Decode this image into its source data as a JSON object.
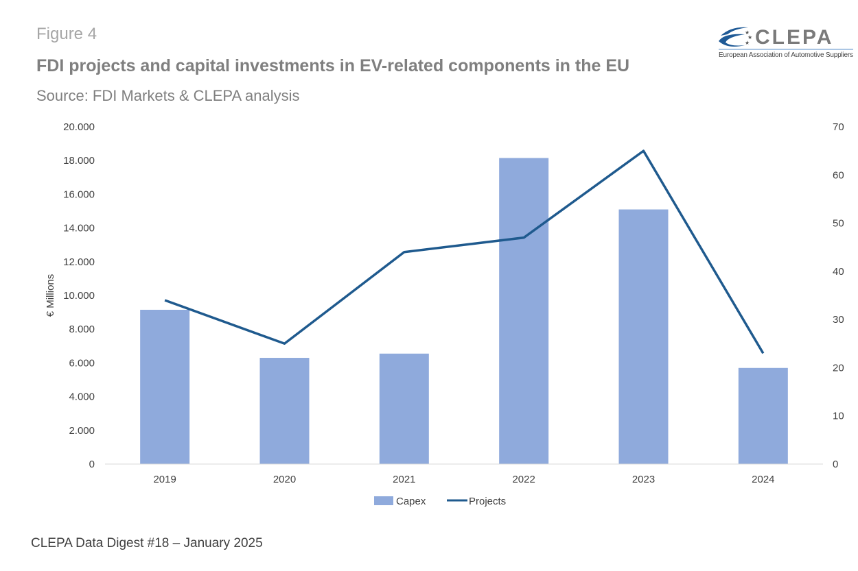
{
  "header": {
    "figure": "Figure 4",
    "title": "FDI projects and capital investments in EV-related components in the EU",
    "source": "Source: FDI Markets & CLEPA analysis"
  },
  "logo": {
    "name": "CLEPA",
    "tagline": "European Association of Automotive Suppliers",
    "color": "#1f5a96"
  },
  "footer": "CLEPA Data Digest #18 – January 2025",
  "chart_data": {
    "type": "bar+line",
    "categories": [
      "2019",
      "2020",
      "2021",
      "2022",
      "2023",
      "2024"
    ],
    "series": [
      {
        "name": "Capex",
        "type": "bar",
        "axis": "left",
        "color": "#8faadc",
        "values": [
          9150,
          6300,
          6550,
          18150,
          15100,
          5700
        ]
      },
      {
        "name": "Projects",
        "type": "line",
        "axis": "right",
        "color": "#1f5a8e",
        "values": [
          34,
          25,
          44,
          47,
          65,
          23
        ]
      }
    ],
    "ylabel": "€ Millions",
    "ylim": [
      0,
      20000
    ],
    "yticks": [
      "0",
      "2.000",
      "4.000",
      "6.000",
      "8.000",
      "10.000",
      "12.000",
      "14.000",
      "16.000",
      "18.000",
      "20.000"
    ],
    "y2lim": [
      0,
      70
    ],
    "y2ticks": [
      "0",
      "10",
      "20",
      "30",
      "40",
      "50",
      "60",
      "70"
    ],
    "grid": false,
    "legend": "bottom"
  }
}
